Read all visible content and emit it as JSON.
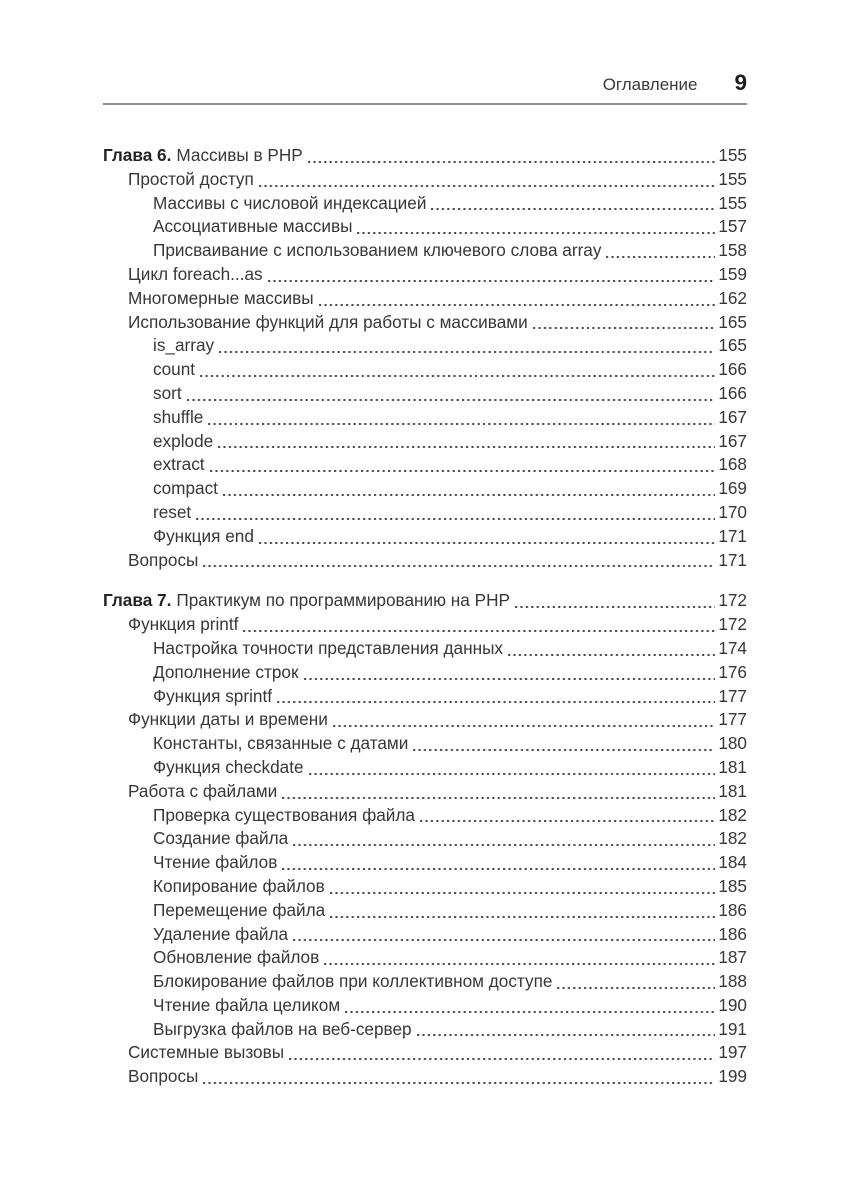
{
  "header": {
    "running_title": "Оглавление",
    "page_number": "9"
  },
  "toc": {
    "sections": [
      {
        "chapter_label": "Глава 6.",
        "chapter_title": "Массивы в PHP",
        "chapter_page": "155",
        "entries": [
          {
            "level": 1,
            "title": "Простой доступ",
            "page": "155"
          },
          {
            "level": 2,
            "title": "Массивы с числовой индексацией",
            "page": "155"
          },
          {
            "level": 2,
            "title": "Ассоциативные массивы",
            "page": "157"
          },
          {
            "level": 2,
            "title": "Присваивание с использованием ключевого слова array",
            "page": "158"
          },
          {
            "level": 1,
            "title": "Цикл foreach...as",
            "page": "159"
          },
          {
            "level": 1,
            "title": "Многомерные массивы",
            "page": "162"
          },
          {
            "level": 1,
            "title": "Использование функций для работы с массивами",
            "page": "165"
          },
          {
            "level": 2,
            "title": "is_array",
            "page": "165"
          },
          {
            "level": 2,
            "title": "count",
            "page": "166"
          },
          {
            "level": 2,
            "title": "sort",
            "page": "166"
          },
          {
            "level": 2,
            "title": "shuffle",
            "page": "167"
          },
          {
            "level": 2,
            "title": "explode",
            "page": "167"
          },
          {
            "level": 2,
            "title": "extract",
            "page": "168"
          },
          {
            "level": 2,
            "title": "compact",
            "page": "169"
          },
          {
            "level": 2,
            "title": "reset",
            "page": "170"
          },
          {
            "level": 2,
            "title": "Функция end",
            "page": "171"
          },
          {
            "level": 1,
            "title": "Вопросы",
            "page": "171"
          }
        ]
      },
      {
        "chapter_label": "Глава 7.",
        "chapter_title": "Практикум по программированию на PHP",
        "chapter_page": "172",
        "entries": [
          {
            "level": 1,
            "title": "Функция printf",
            "page": "172"
          },
          {
            "level": 2,
            "title": "Настройка точности представления данных",
            "page": "174"
          },
          {
            "level": 2,
            "title": "Дополнение строк",
            "page": "176"
          },
          {
            "level": 2,
            "title": "Функция sprintf",
            "page": "177"
          },
          {
            "level": 1,
            "title": "Функции даты и времени",
            "page": "177"
          },
          {
            "level": 2,
            "title": "Константы, связанные с датами",
            "page": "180"
          },
          {
            "level": 2,
            "title": "Функция checkdate",
            "page": "181"
          },
          {
            "level": 1,
            "title": "Работа с файлами",
            "page": "181"
          },
          {
            "level": 2,
            "title": "Проверка существования файла",
            "page": "182"
          },
          {
            "level": 2,
            "title": "Создание файла",
            "page": "182"
          },
          {
            "level": 2,
            "title": "Чтение файлов",
            "page": "184"
          },
          {
            "level": 2,
            "title": "Копирование файлов",
            "page": "185"
          },
          {
            "level": 2,
            "title": "Перемещение файла",
            "page": "186"
          },
          {
            "level": 2,
            "title": "Удаление файла",
            "page": "186"
          },
          {
            "level": 2,
            "title": "Обновление файлов",
            "page": "187"
          },
          {
            "level": 2,
            "title": "Блокирование файлов при коллективном доступе",
            "page": "188"
          },
          {
            "level": 2,
            "title": "Чтение файла целиком",
            "page": "190"
          },
          {
            "level": 2,
            "title": "Выгрузка файлов на веб-сервер",
            "page": "191"
          },
          {
            "level": 1,
            "title": "Системные вызовы",
            "page": "197"
          },
          {
            "level": 1,
            "title": "Вопросы",
            "page": "199"
          }
        ]
      }
    ]
  }
}
